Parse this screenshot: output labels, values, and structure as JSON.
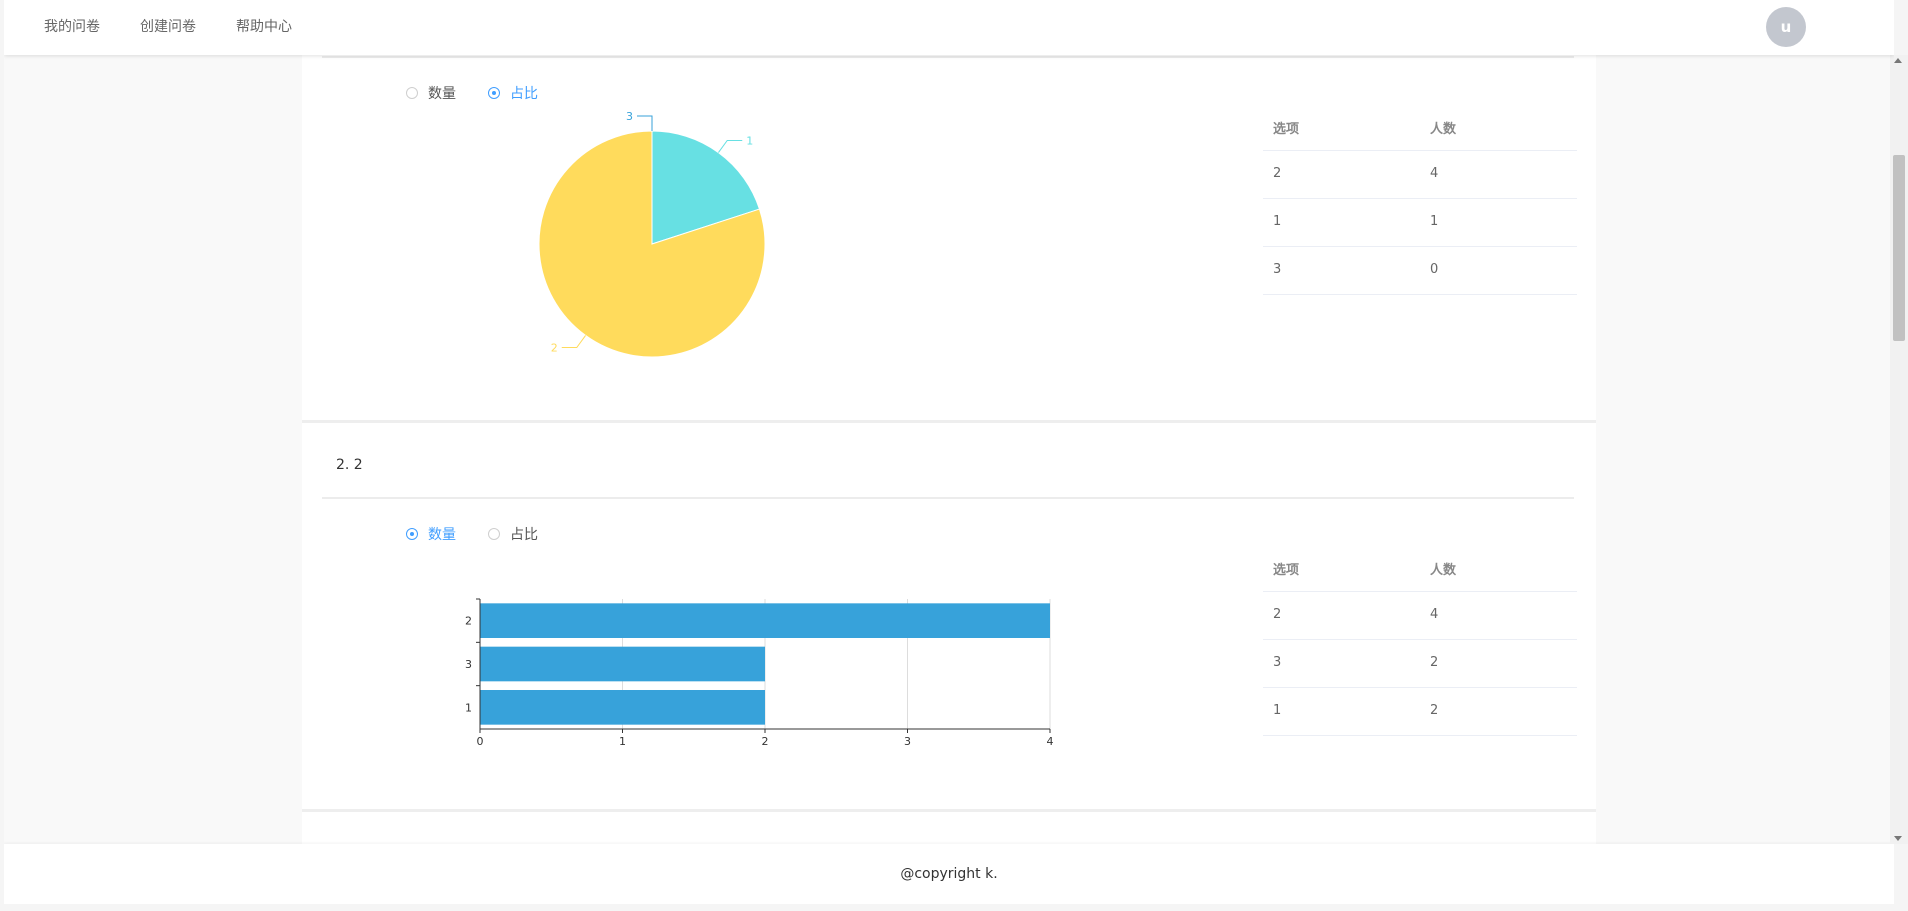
{
  "nav": {
    "items": [
      {
        "label": "我的问卷"
      },
      {
        "label": "创建问卷"
      },
      {
        "label": "帮助中心"
      }
    ],
    "avatar_letter": "u"
  },
  "question1": {
    "radio_count": "数量",
    "radio_ratio": "占比",
    "selected": "占比",
    "table": {
      "headers": [
        "选项",
        "人数"
      ],
      "rows": [
        [
          "2",
          "4"
        ],
        [
          "1",
          "1"
        ],
        [
          "3",
          "0"
        ]
      ]
    }
  },
  "question2": {
    "title": "2. 2",
    "radio_count": "数量",
    "radio_ratio": "占比",
    "selected": "数量",
    "table": {
      "headers": [
        "选项",
        "人数"
      ],
      "rows": [
        [
          "2",
          "4"
        ],
        [
          "3",
          "2"
        ],
        [
          "1",
          "2"
        ]
      ]
    }
  },
  "chart_data": [
    {
      "type": "pie",
      "categories": [
        "1",
        "2",
        "3"
      ],
      "values": [
        1,
        4,
        0
      ],
      "colors": [
        "#67e0e3",
        "#ffdb5c",
        "#37a2da"
      ]
    },
    {
      "type": "bar",
      "orientation": "horizontal",
      "categories": [
        "2",
        "3",
        "1"
      ],
      "values": [
        4,
        2,
        2
      ],
      "xlim": [
        0,
        4
      ],
      "xticks": [
        "0",
        "1",
        "2",
        "3",
        "4"
      ],
      "grid": true,
      "color": "#37a2da"
    }
  ],
  "footer": {
    "text": "@copyright k."
  }
}
